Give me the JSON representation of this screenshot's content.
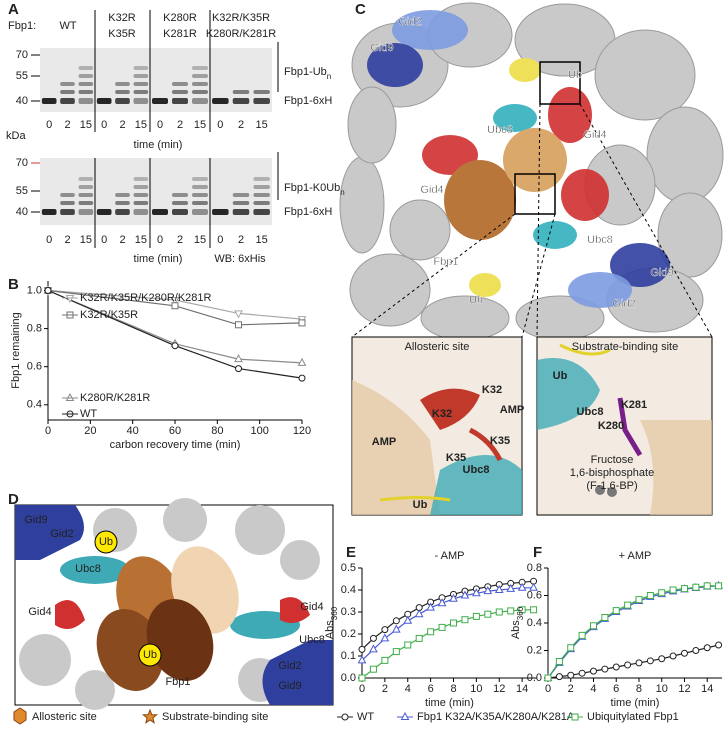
{
  "panels": [
    "A",
    "B",
    "C",
    "D",
    "E",
    "F"
  ],
  "blot": {
    "label_prefix": "Fbp1:",
    "groups": [
      [
        "WT"
      ],
      [
        "K32R",
        "K35R"
      ],
      [
        "K280R",
        "K281R"
      ],
      [
        "K32R/K35R",
        "K280R/K281R"
      ]
    ],
    "mw_markers": [
      70,
      55,
      40
    ],
    "mw_unit": "kDa",
    "lanes": [
      "0",
      "2",
      "15"
    ],
    "time_label": "time (min)",
    "top_labels": [
      {
        "text": "Fbp1-Ub",
        "sub": "n"
      },
      {
        "text": "Fbp1-6xH"
      }
    ],
    "bottom_labels": [
      {
        "text": "Fbp1-K0Ub",
        "sub": "n"
      },
      {
        "text": "Fbp1-6xH"
      }
    ],
    "wb": "WB: 6xHis"
  },
  "structure": {
    "labels": [
      "Gid2",
      "Gid9",
      "Ub",
      "Ubc8",
      "Gid4",
      "Gid4",
      "Fbp1",
      "Ubc8",
      "Ub",
      "Gid9",
      "Gid2"
    ],
    "insets": [
      {
        "title": "Allosteric site",
        "labels": [
          "K32",
          "K32",
          "AMP",
          "AMP",
          "K35",
          "K35",
          "Ubc8",
          "Ub"
        ]
      },
      {
        "title": "Substrate-binding site",
        "labels": [
          "Ub",
          "Ubc8",
          "K281",
          "K280",
          "Fructose",
          "1,6-bisphosphate",
          "(F-1,6-BP)"
        ]
      }
    ]
  },
  "schematic": {
    "labels": [
      "Gid9",
      "Gid2",
      "Ub",
      "Ubc8",
      "Gid4",
      "Gid4",
      "Ubc8",
      "Fbp1",
      "Ub",
      "Gid2",
      "Gid9"
    ],
    "legend": [
      "Allosteric site",
      "Substrate-binding site"
    ]
  },
  "chart_data": [
    {
      "type": "line",
      "y_label": "Fbp1 remaining",
      "x_label": "carbon recovery time (min)",
      "x": [
        0,
        60,
        90,
        120
      ],
      "xlim": [
        0,
        120
      ],
      "xticks": [
        0,
        20,
        40,
        60,
        80,
        100,
        120
      ],
      "ylim": [
        0.32,
        1.05
      ],
      "yticks": [
        0.4,
        0.6,
        0.8,
        {
          "value": 1,
          "label": "1.0"
        }
      ],
      "series": [
        {
          "name": "K32R/K35R/K280R/K281R",
          "color": "#a8a8a8",
          "marker": "triangle-down",
          "values": [
            1,
            0.95,
            0.88,
            0.85
          ]
        },
        {
          "name": "K32R/K35R",
          "color": "#707070",
          "marker": "square",
          "values": [
            1,
            0.92,
            0.82,
            0.83
          ]
        },
        {
          "name": "K280R/K281R",
          "color": "#8a8a8a",
          "marker": "triangle",
          "values": [
            1,
            0.72,
            0.64,
            0.62
          ]
        },
        {
          "name": "WT",
          "color": "#222222",
          "marker": "circle",
          "values": [
            1,
            0.71,
            0.59,
            0.54
          ]
        }
      ]
    },
    {
      "type": "line",
      "title": "- AMP",
      "y_label": "Abs",
      "y_label_sub": "360",
      "x_label": "time (min)",
      "x": [
        0,
        1,
        2,
        3,
        4,
        5,
        6,
        7,
        8,
        9,
        10,
        11,
        12,
        13,
        14,
        15
      ],
      "xlim": [
        0,
        15.3
      ],
      "xticks": [
        0,
        2,
        4,
        6,
        8,
        10,
        12,
        14
      ],
      "ylim": [
        0,
        0.5
      ],
      "yticks": [
        {
          "value": 0,
          "label": "0.0"
        },
        0.1,
        0.2,
        0.3,
        0.4,
        0.5
      ],
      "series": [
        {
          "name": "WT",
          "color": "#222222",
          "marker": "circle",
          "values": [
            0.13,
            0.18,
            0.22,
            0.26,
            0.29,
            0.32,
            0.345,
            0.365,
            0.38,
            0.395,
            0.405,
            0.415,
            0.425,
            0.43,
            0.435,
            0.44
          ]
        },
        {
          "name": "Fbp1 K32A/K35A/K280A/K281A",
          "color": "#4a5bd4",
          "marker": "triangle",
          "values": [
            0.08,
            0.13,
            0.18,
            0.22,
            0.26,
            0.29,
            0.32,
            0.34,
            0.36,
            0.375,
            0.385,
            0.395,
            0.4,
            0.405,
            0.41,
            0.41
          ]
        },
        {
          "name": "Ubiquitylated Fbp1",
          "color": "#3fae49",
          "marker": "square",
          "values": [
            0,
            0.04,
            0.08,
            0.12,
            0.15,
            0.18,
            0.21,
            0.23,
            0.25,
            0.265,
            0.28,
            0.29,
            0.3,
            0.305,
            0.31,
            0.31
          ]
        }
      ]
    },
    {
      "type": "line",
      "title": "+ AMP",
      "y_label": "Abs",
      "y_label_sub": "360",
      "x_label": "time (min)",
      "x": [
        0,
        1,
        2,
        3,
        4,
        5,
        6,
        7,
        8,
        9,
        10,
        11,
        12,
        13,
        14,
        15
      ],
      "xlim": [
        0,
        15.3
      ],
      "xticks": [
        0,
        2,
        4,
        6,
        8,
        10,
        12,
        14
      ],
      "ylim": [
        0,
        0.8
      ],
      "yticks": [
        {
          "value": 0,
          "label": "0.0"
        },
        0.2,
        0.4,
        0.6,
        0.8
      ],
      "series": [
        {
          "color": "#222222",
          "marker": "circle",
          "values": [
            0,
            0.01,
            0.02,
            0.035,
            0.05,
            0.065,
            0.08,
            0.095,
            0.11,
            0.125,
            0.14,
            0.16,
            0.18,
            0.2,
            0.22,
            0.24
          ]
        },
        {
          "color": "#4a5bd4",
          "marker": "triangle",
          "values": [
            0,
            0.11,
            0.21,
            0.3,
            0.37,
            0.43,
            0.48,
            0.52,
            0.56,
            0.59,
            0.61,
            0.63,
            0.645,
            0.655,
            0.665,
            0.67
          ]
        },
        {
          "color": "#3fae49",
          "marker": "square",
          "values": [
            0,
            0.12,
            0.22,
            0.31,
            0.38,
            0.44,
            0.49,
            0.53,
            0.57,
            0.6,
            0.62,
            0.64,
            0.65,
            0.66,
            0.67,
            0.67
          ]
        }
      ]
    }
  ]
}
